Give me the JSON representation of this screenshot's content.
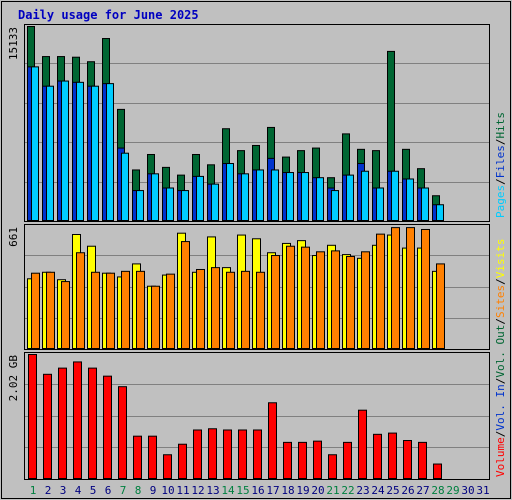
{
  "title": "Daily usage for June 2025",
  "colors": {
    "hits": "#006633",
    "files": "#0033cc",
    "pages": "#00ccff",
    "visits": "#ffff00",
    "sites": "#ff8000",
    "volume": "#ff0000",
    "weekend_label": "#008040",
    "weekday_label": "#000080",
    "panel_bg": "#c0c0c0",
    "separator_text": "#000000"
  },
  "chart_data": [
    {
      "type": "bar",
      "panel": "hits-files-pages",
      "ymax_label": "15133",
      "ylim": [
        0,
        15133
      ],
      "legend": [
        "Hits",
        "Files",
        "Pages"
      ],
      "legend_separator": "/",
      "x": [
        "1",
        "2",
        "3",
        "4",
        "5",
        "6",
        "7",
        "8",
        "9",
        "10",
        "11",
        "12",
        "13",
        "14",
        "15",
        "16",
        "17",
        "18",
        "19",
        "20",
        "21",
        "22",
        "23",
        "24",
        "25",
        "26",
        "27",
        "28",
        "29",
        "30",
        "31"
      ],
      "series": [
        {
          "name": "Hits",
          "values": [
            15133,
            12800,
            12800,
            12750,
            12400,
            14200,
            8700,
            4000,
            5200,
            4200,
            3600,
            5200,
            4400,
            7200,
            5500,
            5900,
            7300,
            5000,
            5500,
            5700,
            3400,
            6800,
            5600,
            5500,
            13200,
            5600,
            4100,
            2000,
            null,
            null,
            null
          ]
        },
        {
          "name": "Files",
          "values": [
            12000,
            10500,
            10900,
            10800,
            10500,
            10700,
            5700,
            2400,
            3700,
            2600,
            2400,
            3500,
            2900,
            4500,
            3700,
            4000,
            4900,
            3800,
            3800,
            3400,
            2600,
            3600,
            4500,
            2600,
            3900,
            3300,
            2600,
            1300,
            null,
            null,
            null
          ]
        },
        {
          "name": "Pages",
          "values": [
            12000,
            10500,
            10900,
            10800,
            10500,
            10700,
            5300,
            2400,
            3700,
            2600,
            2400,
            3500,
            2900,
            4500,
            3700,
            4000,
            4000,
            3800,
            3800,
            3400,
            2400,
            3600,
            3900,
            2600,
            3900,
            3300,
            2600,
            1300,
            null,
            null,
            null
          ]
        }
      ]
    },
    {
      "type": "bar",
      "panel": "visits-sites",
      "ymax_label": "661",
      "ylim": [
        0,
        661
      ],
      "legend": [
        "Visits",
        "Sites",
        "Vol. Out",
        "Vol. In"
      ],
      "legend_separator": "/",
      "x": [
        "1",
        "2",
        "3",
        "4",
        "5",
        "6",
        "7",
        "8",
        "9",
        "10",
        "11",
        "12",
        "13",
        "14",
        "15",
        "16",
        "17",
        "18",
        "19",
        "20",
        "21",
        "22",
        "23",
        "24",
        "25",
        "26",
        "27",
        "28",
        "29",
        "30",
        "31"
      ],
      "series": [
        {
          "name": "Visits",
          "values": [
            380,
            415,
            375,
            618,
            555,
            410,
            390,
            460,
            340,
            400,
            625,
            415,
            605,
            440,
            615,
            595,
            520,
            570,
            585,
            505,
            560,
            510,
            490,
            560,
            615,
            545,
            545,
            420,
            null,
            null,
            null
          ]
        },
        {
          "name": "Sites",
          "values": [
            410,
            415,
            365,
            520,
            415,
            410,
            420,
            420,
            340,
            405,
            580,
            430,
            440,
            415,
            420,
            415,
            505,
            555,
            550,
            525,
            530,
            500,
            525,
            620,
            655,
            655,
            645,
            460,
            null,
            null,
            null
          ]
        }
      ]
    },
    {
      "type": "bar",
      "panel": "volume",
      "ymax_label": "2.02 GB",
      "ylim": [
        0,
        2.02
      ],
      "legend": [
        "Volume"
      ],
      "x": [
        "1",
        "2",
        "3",
        "4",
        "5",
        "6",
        "7",
        "8",
        "9",
        "10",
        "11",
        "12",
        "13",
        "14",
        "15",
        "16",
        "17",
        "18",
        "19",
        "20",
        "21",
        "22",
        "23",
        "24",
        "25",
        "26",
        "27",
        "28",
        "29",
        "30",
        "31"
      ],
      "series": [
        {
          "name": "Volume",
          "values": [
            2.02,
            1.7,
            1.8,
            1.9,
            1.8,
            1.67,
            1.5,
            0.7,
            0.7,
            0.4,
            0.57,
            0.8,
            0.82,
            0.8,
            0.8,
            0.8,
            1.24,
            0.6,
            0.6,
            0.62,
            0.4,
            0.6,
            1.12,
            0.73,
            0.75,
            0.63,
            0.6,
            0.25,
            null,
            null,
            null
          ]
        }
      ]
    }
  ],
  "weekend_days": [
    1,
    7,
    8,
    14,
    15,
    21,
    22,
    28,
    29
  ]
}
